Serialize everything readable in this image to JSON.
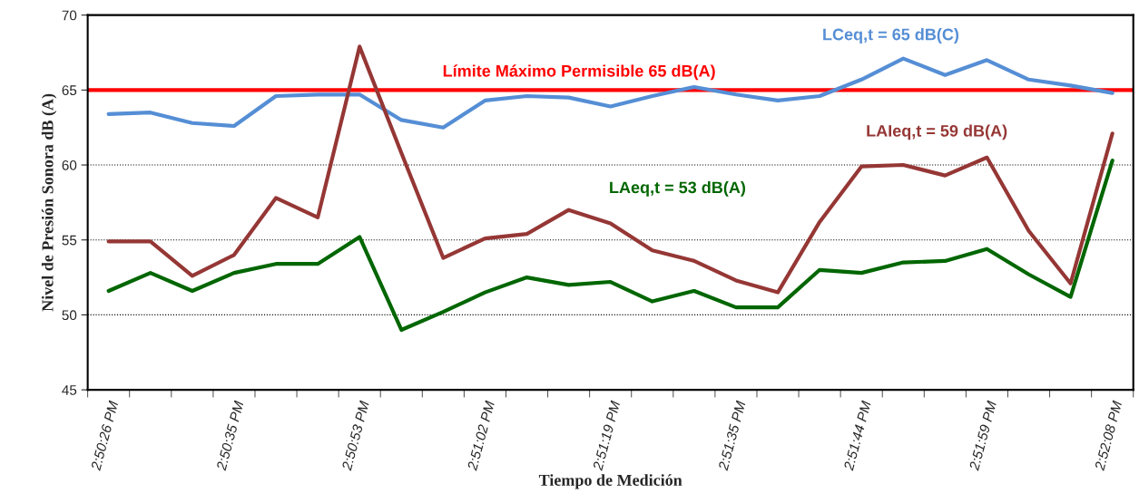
{
  "chart_data": {
    "type": "line",
    "xlabel": "Tiempo de Medición",
    "ylabel": "Nivel de Presión Sonora dB (A)",
    "categories": [
      "2:50:26 PM",
      null,
      null,
      "2:50:35 PM",
      null,
      null,
      "2:50:53 PM",
      null,
      null,
      "2:51:02 PM",
      null,
      null,
      "2:51:19 PM",
      null,
      null,
      "2:51:35 PM",
      null,
      null,
      "2:51:44 PM",
      null,
      null,
      "2:51:59 PM",
      null,
      null,
      "2:52:08 PM"
    ],
    "series": [
      {
        "name": "LCeq,t = 65 dB(C)",
        "color": "#558ed5",
        "values": [
          63.4,
          63.5,
          62.8,
          62.6,
          64.6,
          64.7,
          64.7,
          63.0,
          62.5,
          64.3,
          64.6,
          64.5,
          63.9,
          64.6,
          65.2,
          64.7,
          64.3,
          64.6,
          65.7,
          67.1,
          66.0,
          67.0,
          65.7,
          65.3,
          64.8
        ]
      },
      {
        "name": "LAIeq,t = 59 dB(A)",
        "color": "#953735",
        "values": [
          54.9,
          54.9,
          52.6,
          54.0,
          57.8,
          56.5,
          67.9,
          60.8,
          53.8,
          55.1,
          55.4,
          57.0,
          56.1,
          54.3,
          53.6,
          52.3,
          51.5,
          56.2,
          59.9,
          60.0,
          59.3,
          60.5,
          55.6,
          52.1,
          62.1
        ]
      },
      {
        "name": "LAeq,t = 53 dB(A)",
        "color": "#006600",
        "values": [
          51.6,
          52.8,
          51.6,
          52.8,
          53.4,
          53.4,
          55.2,
          49.0,
          50.2,
          51.5,
          52.5,
          52.0,
          52.2,
          50.9,
          51.6,
          50.5,
          50.5,
          53.0,
          52.8,
          53.5,
          53.6,
          54.4,
          52.7,
          51.2,
          60.3
        ]
      }
    ],
    "ref_lines": [
      {
        "axis": "y",
        "value": 65,
        "label": "Límite Máximo Permisible 65 dB(A)",
        "color": "#ff0000",
        "line_style": "solid"
      }
    ],
    "ylim": [
      45,
      70
    ],
    "yticks": [
      45,
      50,
      55,
      60,
      65,
      70
    ],
    "grid": "y",
    "legend": false,
    "marker": "none",
    "line_style": "solid"
  }
}
